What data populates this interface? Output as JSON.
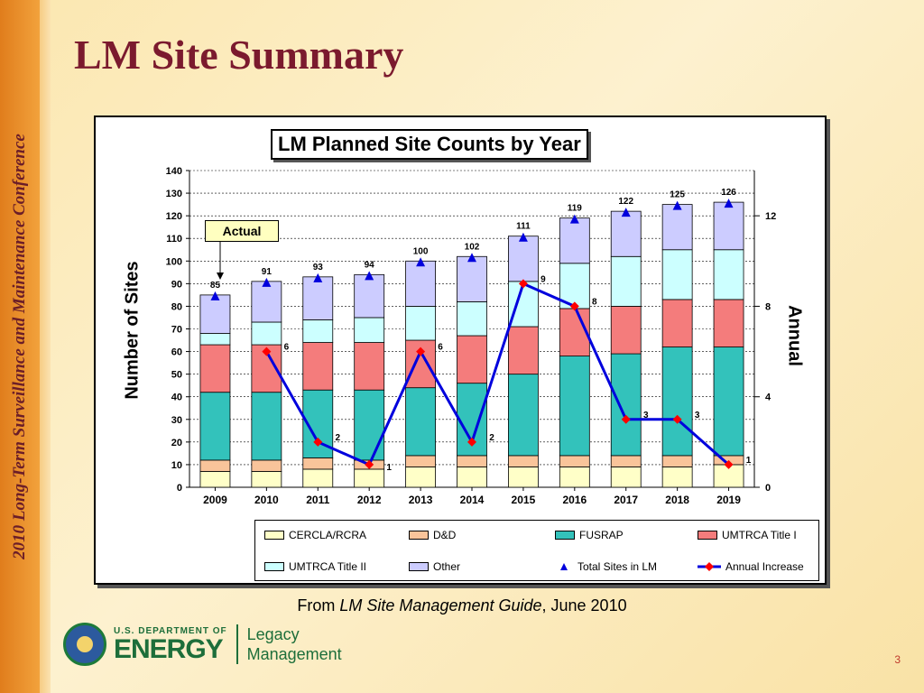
{
  "slide": {
    "title": "LM Site Summary",
    "side_title": "2010 Long-Term Surveillance and Maintenance Conference",
    "source_prefix": "From ",
    "source_title": "LM Site Management Guide",
    "source_suffix": ", June 2010",
    "page_number": "3",
    "logo": {
      "line1": "U.S. DEPARTMENT OF",
      "line2": "ENERGY",
      "legacy1": "Legacy",
      "legacy2": "Management"
    }
  },
  "chart_data": {
    "type": "bar",
    "title": "LM Planned Site Counts by Year",
    "ylabel": "Number of Sites",
    "y2label": "Annual",
    "ylim": [
      0,
      140
    ],
    "yticks": [
      0,
      10,
      20,
      30,
      40,
      50,
      60,
      70,
      80,
      90,
      100,
      110,
      120,
      130,
      140
    ],
    "y2lim": [
      0,
      14
    ],
    "y2ticks": [
      0,
      4,
      8,
      12
    ],
    "categories": [
      "2009",
      "2010",
      "2011",
      "2012",
      "2013",
      "2014",
      "2015",
      "2016",
      "2017",
      "2018",
      "2019"
    ],
    "stacked_series": [
      {
        "name": "CERCLA/RCRA",
        "color": "#ffffc8",
        "values": [
          7,
          7,
          8,
          8,
          9,
          9,
          9,
          9,
          9,
          9,
          10
        ]
      },
      {
        "name": "D&D",
        "color": "#f9c49a",
        "values": [
          5,
          5,
          5,
          4,
          5,
          5,
          5,
          5,
          5,
          5,
          4
        ]
      },
      {
        "name": "FUSRAP",
        "color": "#33c2bb",
        "values": [
          30,
          30,
          30,
          31,
          30,
          32,
          36,
          44,
          45,
          48,
          48
        ]
      },
      {
        "name": "UMTRCA Title I",
        "color": "#f47c7c",
        "values": [
          21,
          21,
          21,
          21,
          21,
          21,
          21,
          21,
          21,
          21,
          21
        ]
      },
      {
        "name": "UMTRCA Title II",
        "color": "#ccffff",
        "values": [
          5,
          10,
          10,
          11,
          15,
          15,
          20,
          20,
          22,
          22,
          22
        ]
      },
      {
        "name": "Other",
        "color": "#ccccff",
        "values": [
          17,
          18,
          19,
          19,
          20,
          20,
          20,
          20,
          20,
          20,
          21
        ]
      }
    ],
    "total_series": {
      "name": "Total Sites in LM",
      "color": "#0000dd",
      "values": [
        85,
        91,
        93,
        94,
        100,
        102,
        111,
        119,
        122,
        125,
        126
      ]
    },
    "line_series": {
      "name": "Annual Increase",
      "color": "#0000dd",
      "marker_color": "#ff0000",
      "axis": "secondary",
      "x": [
        "2010",
        "2011",
        "2012",
        "2013",
        "2014",
        "2015",
        "2016",
        "2017",
        "2018",
        "2019"
      ],
      "values": [
        6,
        2,
        1,
        6,
        2,
        9,
        8,
        3,
        3,
        1
      ]
    },
    "annotation": "Actual",
    "legend_position": "bottom"
  }
}
